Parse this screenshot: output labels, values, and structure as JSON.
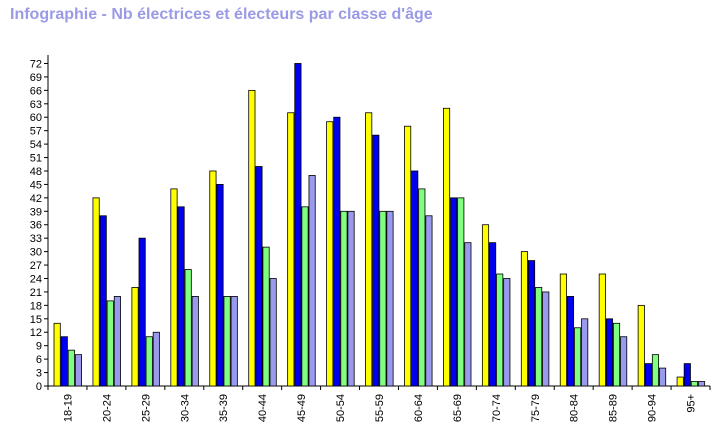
{
  "chart_data": {
    "type": "bar",
    "title": "Infographie - Nb électrices et électeurs par classe d'âge",
    "categories": [
      "18-19",
      "20-24",
      "25-29",
      "30-34",
      "35-39",
      "40-44",
      "45-49",
      "50-54",
      "55-59",
      "60-64",
      "65-69",
      "70-74",
      "75-79",
      "80-84",
      "85-89",
      "90-94",
      "95+"
    ],
    "series": [
      {
        "color": "#ffff00",
        "values": [
          14,
          42,
          22,
          44,
          48,
          66,
          61,
          59,
          61,
          58,
          62,
          36,
          30,
          25,
          25,
          18,
          2
        ]
      },
      {
        "color": "#0000ee",
        "values": [
          11,
          38,
          33,
          40,
          45,
          49,
          72,
          60,
          56,
          48,
          42,
          32,
          28,
          20,
          15,
          5,
          5
        ]
      },
      {
        "color": "#80ff80",
        "values": [
          8,
          19,
          11,
          26,
          20,
          31,
          40,
          39,
          39,
          44,
          42,
          25,
          22,
          13,
          14,
          7,
          1
        ]
      },
      {
        "color": "#9999ee",
        "values": [
          7,
          20,
          12,
          20,
          20,
          24,
          47,
          39,
          39,
          38,
          32,
          24,
          21,
          15,
          11,
          4,
          1
        ]
      }
    ],
    "yticks": [
      0,
      3,
      6,
      9,
      12,
      15,
      18,
      21,
      24,
      27,
      30,
      33,
      36,
      39,
      42,
      45,
      48,
      51,
      54,
      57,
      60,
      63,
      66,
      69,
      72
    ],
    "ylim": [
      0,
      73
    ],
    "grid": false,
    "legend": "none"
  }
}
